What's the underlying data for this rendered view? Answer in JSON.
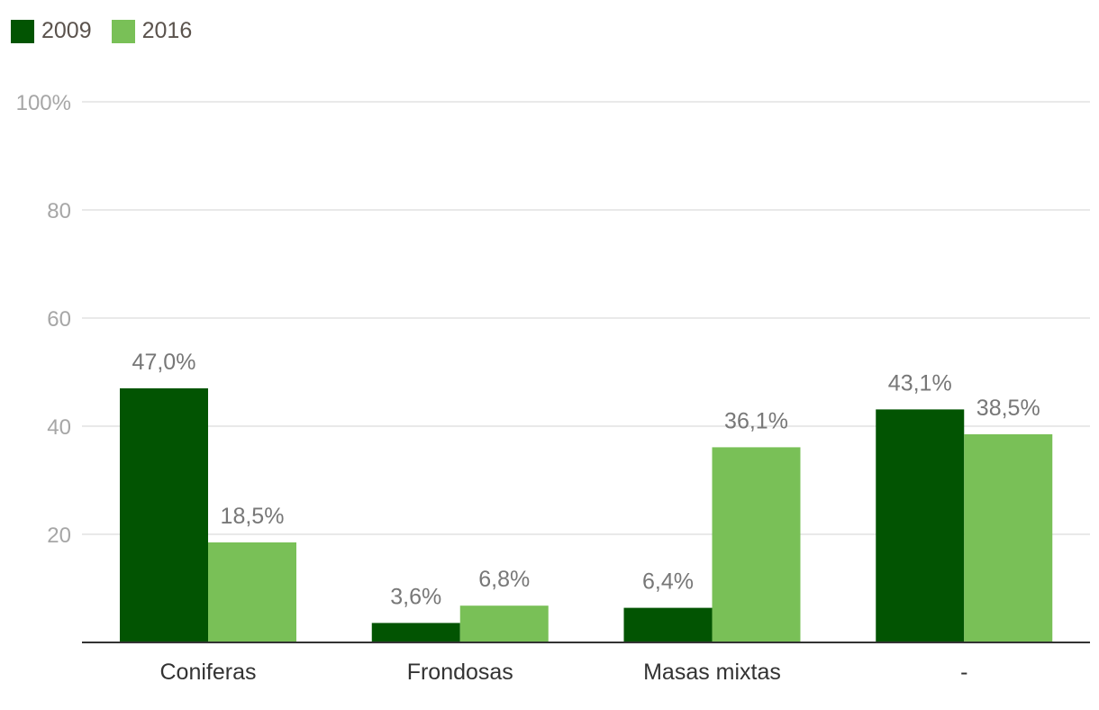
{
  "legend": [
    {
      "label": "2009",
      "color": "#025402"
    },
    {
      "label": "2016",
      "color": "#79c057"
    }
  ],
  "chart_data": {
    "type": "bar",
    "categories": [
      "Coniferas",
      "Frondosas",
      "Masas mixtas",
      "-"
    ],
    "series": [
      {
        "name": "2009",
        "values": [
          47.0,
          3.6,
          6.4,
          43.1
        ],
        "labels": [
          "47,0%",
          "3,6%",
          "6,4%",
          "43,1%"
        ],
        "color": "#025402"
      },
      {
        "name": "2016",
        "values": [
          18.5,
          6.8,
          36.1,
          38.5
        ],
        "labels": [
          "18,5%",
          "6,8%",
          "36,1%",
          "38,5%"
        ],
        "color": "#79c057"
      }
    ],
    "ylim": [
      0,
      100
    ],
    "yticks": [
      20,
      40,
      60,
      80,
      100
    ],
    "ytick_labels": [
      "20",
      "40",
      "60",
      "80",
      "100%"
    ],
    "grid": true,
    "legend_position": "top-left",
    "title": "",
    "xlabel": "",
    "ylabel": ""
  }
}
